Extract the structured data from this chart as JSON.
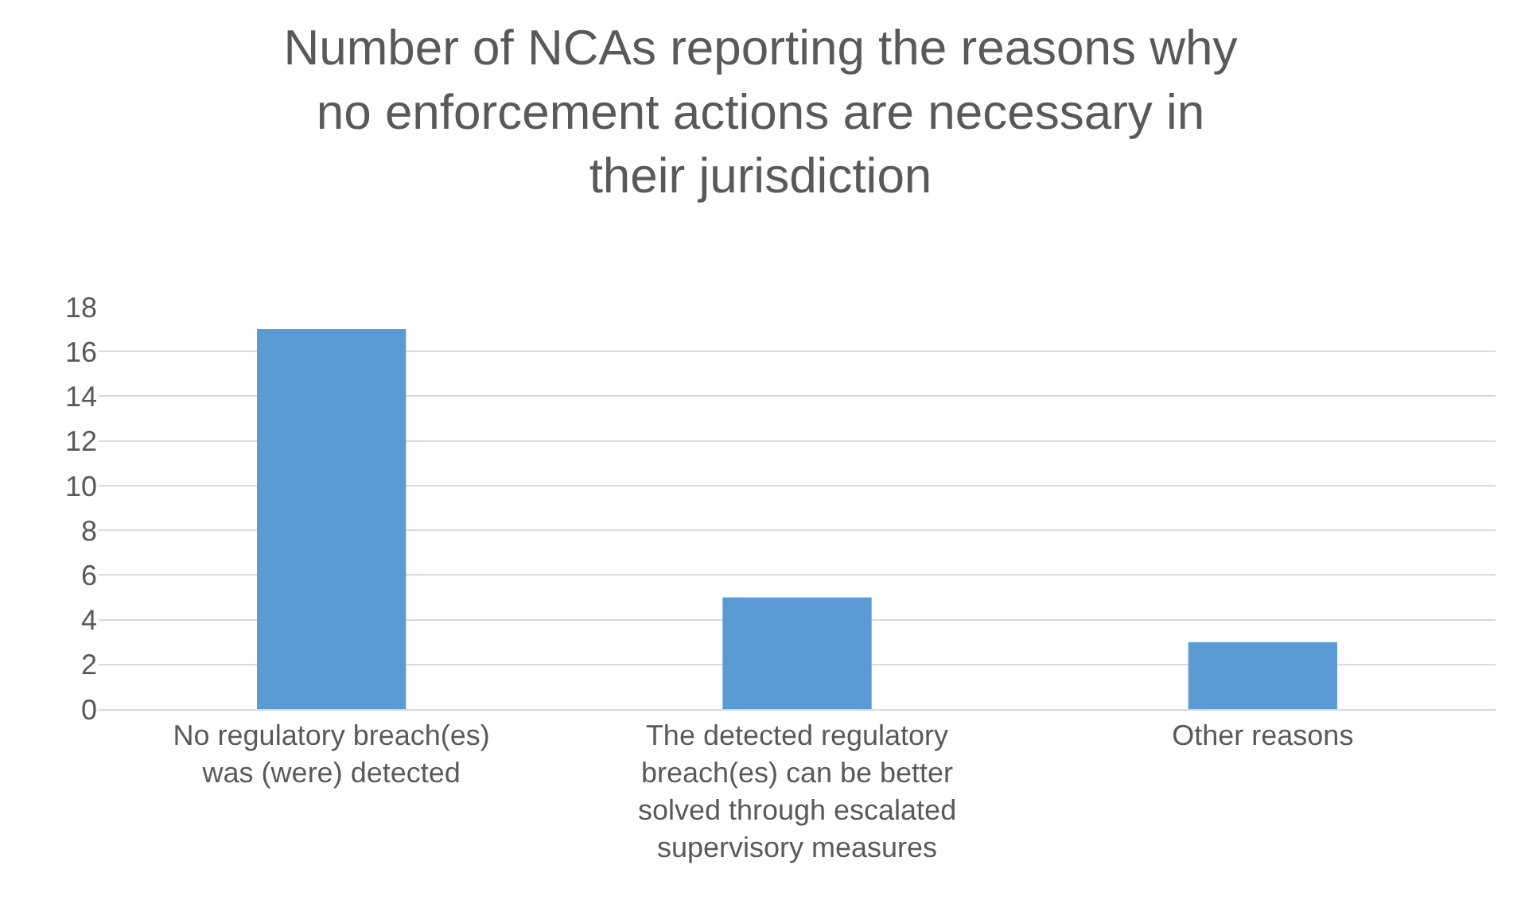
{
  "chart_data": {
    "type": "bar",
    "title": "Number of NCAs reporting the reasons why no enforcement actions are necessary in their jurisdiction",
    "categories": [
      "No regulatory breach(es) was (were) detected",
      "The detected regulatory breach(es) can be better solved through escalated supervisory measures",
      "Other reasons"
    ],
    "values": [
      17,
      5,
      3
    ],
    "color": "#5b9bd5",
    "ylim": [
      0,
      18
    ],
    "yticks": [
      0,
      2,
      4,
      6,
      8,
      10,
      12,
      14,
      16,
      18
    ],
    "grid": "y",
    "legend": false
  }
}
